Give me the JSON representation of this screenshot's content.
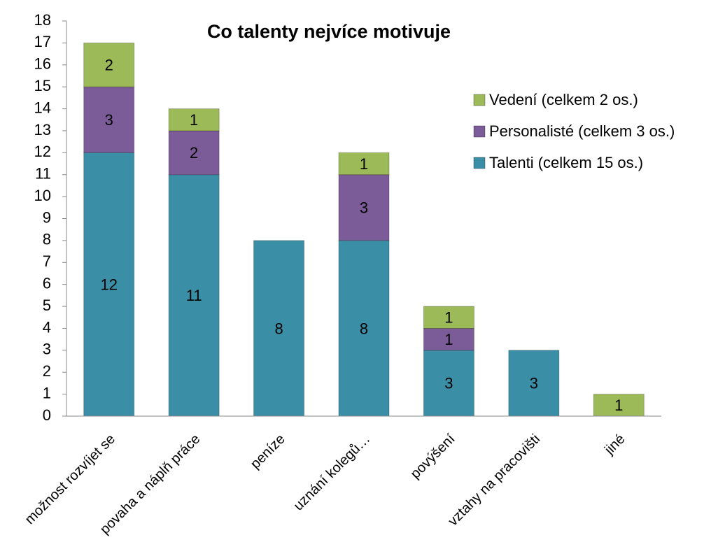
{
  "chart_data": {
    "type": "stacked-bar",
    "title": "Co talenty nejvíce motivuje",
    "categories": [
      "možnost rozvíjet se",
      "povaha a náplň práce",
      "peníze",
      "uznání kolegů…",
      "povýšení",
      "vztahy na pracovišti",
      "jiné"
    ],
    "series": [
      {
        "name": "Talenti (celkem 15 os.)",
        "color": "#3a8fa6",
        "values": [
          12,
          11,
          8,
          8,
          3,
          3,
          0
        ]
      },
      {
        "name": "Personalisté (celkem 3 os.)",
        "color": "#7b5b98",
        "values": [
          3,
          2,
          0,
          3,
          1,
          0,
          0
        ]
      },
      {
        "name": "Vedení (celkem 2 os.)",
        "color": "#9cbb58",
        "values": [
          2,
          1,
          0,
          1,
          1,
          0,
          1
        ]
      }
    ],
    "ylim": [
      0,
      18
    ],
    "yticks": [
      0,
      1,
      2,
      3,
      4,
      5,
      6,
      7,
      8,
      9,
      10,
      11,
      12,
      13,
      14,
      15,
      16,
      17,
      18
    ],
    "grid": false,
    "legend": "upper right"
  }
}
